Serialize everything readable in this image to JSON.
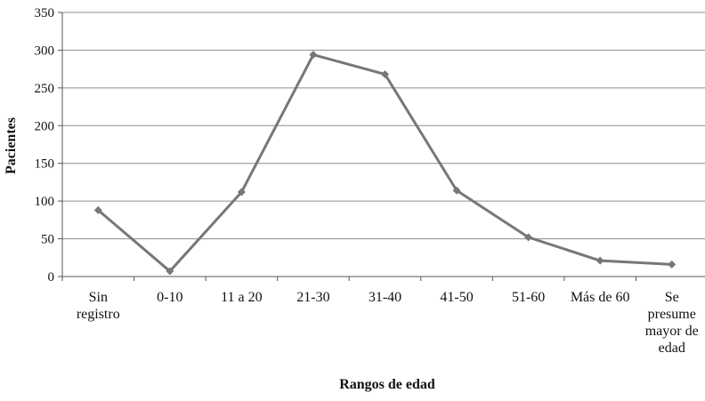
{
  "chart_data": {
    "type": "line",
    "title": "",
    "xlabel": "Rangos de edad",
    "ylabel": "Pacientes",
    "categories": [
      [
        "Sin",
        "registro"
      ],
      [
        "0-10"
      ],
      [
        "11 a 20"
      ],
      [
        "21-30"
      ],
      [
        "31-40"
      ],
      [
        "41-50"
      ],
      [
        "51-60"
      ],
      [
        "Más de 60"
      ],
      [
        "Se",
        "presume",
        "mayor de",
        "edad"
      ]
    ],
    "series": [
      {
        "values": [
          88,
          7,
          112,
          294,
          268,
          114,
          52,
          21,
          16
        ]
      }
    ],
    "ylim": [
      0,
      350
    ],
    "yticks": [
      0,
      50,
      100,
      150,
      200,
      250,
      300,
      350
    ],
    "grid": true,
    "legend": "none",
    "colors": {
      "line": "#777777",
      "marker": "#777777",
      "grid": "#8c8c8c",
      "axis": "#555555",
      "text": "#111111"
    }
  }
}
